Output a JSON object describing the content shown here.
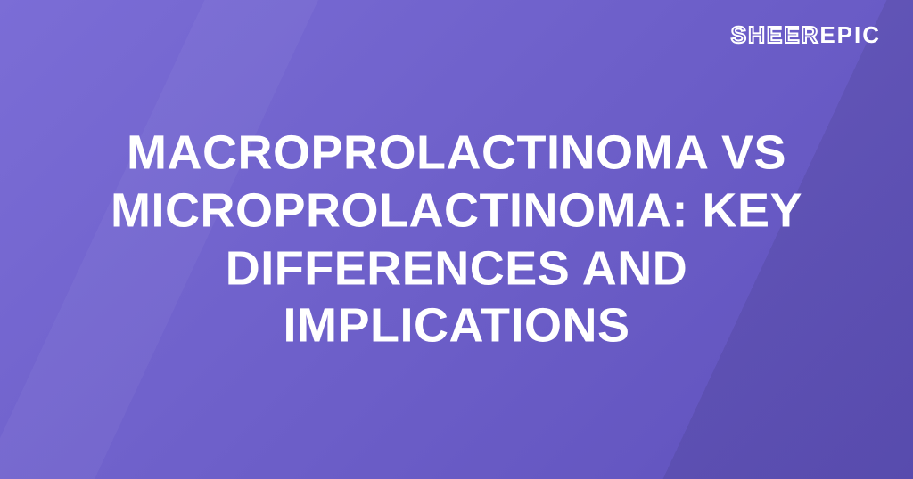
{
  "logo": {
    "part1": "SHEER",
    "part2": "EPIC"
  },
  "title": "MACROPROLACTINOMA VS MICROPROLACTINOMA: KEY DIFFERENCES AND IMPLICATIONS",
  "colors": {
    "background_gradient_start": "#7b6dd6",
    "background_gradient_mid": "#6d5fc9",
    "background_gradient_end": "#5f51bc",
    "text_color": "#ffffff"
  },
  "typography": {
    "title_fontsize": 54,
    "title_fontweight": 800,
    "logo_fontsize": 26
  }
}
